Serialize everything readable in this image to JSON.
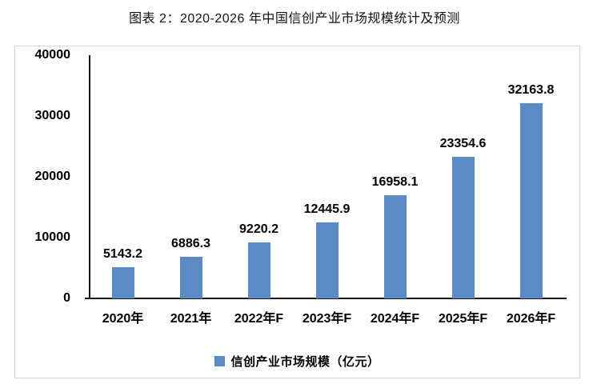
{
  "chart_data": {
    "type": "bar",
    "title": "图表 2：2020-2026 年中国信创产业市场规模统计及预测",
    "categories": [
      "2020年",
      "2021年",
      "2022年F",
      "2023年F",
      "2024年F",
      "2025年F",
      "2026年F"
    ],
    "values": [
      5143.2,
      6886.3,
      9220.2,
      12445.9,
      16958.1,
      23354.6,
      32163.8
    ],
    "series_name": "信创产业市场规模（亿元）",
    "xlabel": "",
    "ylabel": "",
    "ylim": [
      0,
      40000
    ],
    "yticks": [
      0,
      10000,
      20000,
      30000,
      40000
    ],
    "grid": false,
    "value_labels": true,
    "legend": {
      "label": "信创产业市场规模（亿元）",
      "position": "bottom"
    },
    "colors": {
      "bar": "#5B8AC4",
      "axis": "#1a1a1a",
      "text": "#000000",
      "frame_border": "#d8d8d8"
    }
  }
}
